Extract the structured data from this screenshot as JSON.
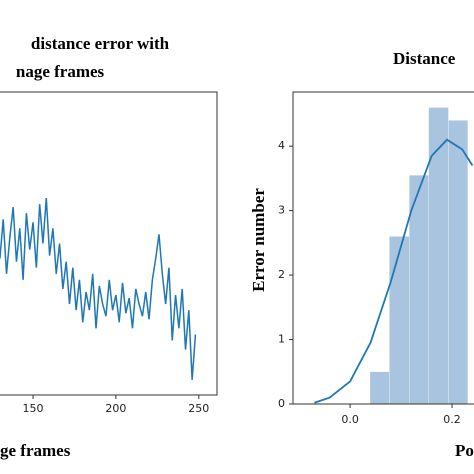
{
  "chart_data": [
    {
      "type": "line",
      "title_lines": [
        "distance error with",
        "nage frames"
      ],
      "x_label": "ge frames",
      "x": [
        130,
        132,
        134,
        136,
        138,
        140,
        142,
        144,
        146,
        148,
        150,
        152,
        154,
        156,
        158,
        160,
        162,
        164,
        166,
        168,
        170,
        172,
        174,
        176,
        178,
        180,
        182,
        184,
        186,
        188,
        190,
        192,
        194,
        196,
        198,
        200,
        202,
        204,
        206,
        208,
        210,
        212,
        214,
        216,
        218,
        220,
        222,
        224,
        226,
        228,
        230,
        232,
        234,
        236,
        238,
        240,
        242,
        244,
        246,
        248
      ],
      "series": [
        {
          "color": "#1f77b4",
          "values": [
            45,
            58,
            40,
            52,
            62,
            44,
            55,
            38,
            60,
            48,
            57,
            42,
            63,
            50,
            65,
            46,
            55,
            40,
            50,
            35,
            44,
            30,
            42,
            28,
            38,
            24,
            34,
            28,
            40,
            22,
            36,
            30,
            26,
            38,
            28,
            33,
            24,
            37,
            27,
            32,
            22,
            35,
            30,
            26,
            34,
            25,
            38,
            45,
            53,
            40,
            30,
            42,
            18,
            33,
            22,
            35,
            15,
            28,
            5,
            20
          ]
        }
      ],
      "xlim": [
        118,
        261
      ],
      "xticks": [
        150,
        200,
        250
      ],
      "ylim": [
        0,
        100
      ]
    },
    {
      "type": "histogram",
      "title": "Distance",
      "x_label": "Po",
      "y_label": "Error number",
      "bins": [
        0.039,
        0.077,
        0.116,
        0.154,
        0.193,
        0.231
      ],
      "counts": [
        0.5,
        2.6,
        3.55,
        4.6,
        4.4
      ],
      "color": "#a9c4de",
      "kde": {
        "color": "#1f77b4",
        "x": [
          -0.07,
          -0.04,
          0,
          0.04,
          0.08,
          0.12,
          0.16,
          0.19,
          0.22,
          0.24
        ],
        "y": [
          0.02,
          0.1,
          0.35,
          0.95,
          1.9,
          3.0,
          3.85,
          4.1,
          3.95,
          3.7
        ]
      },
      "xlim": [
        -0.112,
        0.4
      ],
      "xticks": [
        {
          "value": 0,
          "label": "0.0"
        },
        0.2
      ],
      "ylim": [
        0,
        4.84
      ],
      "yticks": [
        0,
        1,
        2,
        3,
        4
      ]
    }
  ]
}
